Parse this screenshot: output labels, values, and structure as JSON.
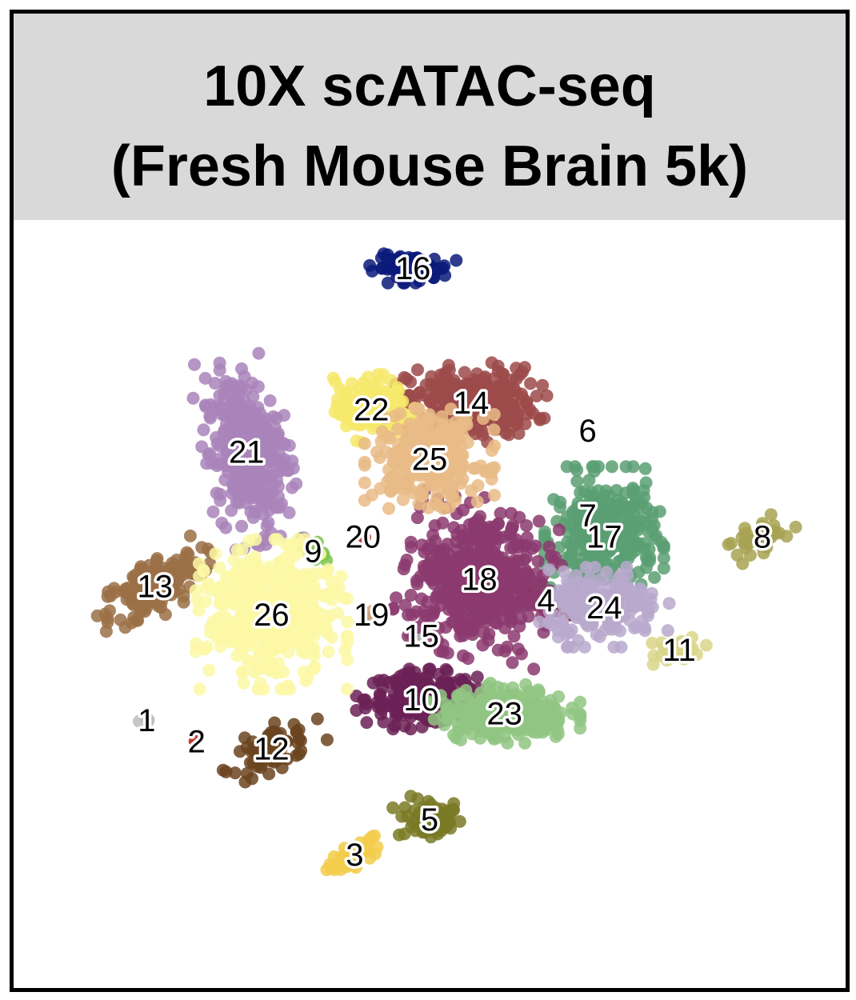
{
  "chart_data": {
    "type": "scatter",
    "title": [
      "10X scATAC-seq",
      "(Fresh Mouse Brain 5k)"
    ],
    "xlabel": "",
    "ylabel": "",
    "grid": false,
    "legend": "none",
    "header_color": "#d9d9d9",
    "clusters": [
      {
        "label": "1",
        "color": "#bdbdbd",
        "x": 0.16,
        "y": 0.36,
        "spread": [
          0.008,
          0.005
        ],
        "n": 6
      },
      {
        "label": "2",
        "color": "#c0392b",
        "x": 0.22,
        "y": 0.33,
        "spread": [
          0.003,
          0.003
        ],
        "n": 2
      },
      {
        "label": "3",
        "color": "#f2cd4b",
        "x": 0.41,
        "y": 0.17,
        "spread": [
          0.035,
          0.012
        ],
        "n": 45,
        "tilt": 28
      },
      {
        "label": "4",
        "color": "#6d1414",
        "x": 0.64,
        "y": 0.53,
        "spread": [
          0.03,
          0.012
        ],
        "n": 30,
        "tilt": -25
      },
      {
        "label": "5",
        "color": "#7a7a26",
        "x": 0.5,
        "y": 0.22,
        "spread": [
          0.035,
          0.025
        ],
        "n": 60
      },
      {
        "label": "6",
        "color": "#444444",
        "x": 0.69,
        "y": 0.77,
        "spread": [
          0,
          0
        ],
        "n": 0
      },
      {
        "label": "7",
        "color": "#5b2c83",
        "x": 0.69,
        "y": 0.65,
        "spread": [
          0.01,
          0.008
        ],
        "n": 10
      },
      {
        "label": "8",
        "color": "#a8a352",
        "x": 0.9,
        "y": 0.62,
        "spread": [
          0.015,
          0.035
        ],
        "n": 45,
        "tilt": -65
      },
      {
        "label": "9",
        "color": "#7cc54f",
        "x": 0.36,
        "y": 0.6,
        "spread": [
          0.02,
          0.01
        ],
        "n": 20,
        "tilt": -30
      },
      {
        "label": "10",
        "color": "#6b2156",
        "x": 0.49,
        "y": 0.39,
        "spread": [
          0.06,
          0.03
        ],
        "n": 220
      },
      {
        "label": "11",
        "color": "#d9d68a",
        "x": 0.8,
        "y": 0.46,
        "spread": [
          0.025,
          0.015
        ],
        "n": 35
      },
      {
        "label": "12",
        "color": "#6b4420",
        "x": 0.31,
        "y": 0.32,
        "spread": [
          0.05,
          0.022
        ],
        "n": 70,
        "tilt": 25
      },
      {
        "label": "13",
        "color": "#9b7046",
        "x": 0.17,
        "y": 0.55,
        "spread": [
          0.06,
          0.03
        ],
        "n": 170,
        "tilt": 30
      },
      {
        "label": "14",
        "color": "#9c4a4a",
        "x": 0.55,
        "y": 0.81,
        "spread": [
          0.07,
          0.04
        ],
        "n": 260
      },
      {
        "label": "15",
        "color": "#b0b0b0",
        "x": 0.49,
        "y": 0.48,
        "spread": [
          0.004,
          0.004
        ],
        "n": 2
      },
      {
        "label": "16",
        "color": "#0b1a7a",
        "x": 0.48,
        "y": 1.0,
        "spread": [
          0.04,
          0.015
        ],
        "n": 90
      },
      {
        "label": "17",
        "color": "#5a9f73",
        "x": 0.71,
        "y": 0.62,
        "spread": [
          0.055,
          0.07
        ],
        "n": 330
      },
      {
        "label": "18",
        "color": "#8b3a6e",
        "x": 0.56,
        "y": 0.56,
        "spread": [
          0.07,
          0.08
        ],
        "n": 520,
        "tilt": -15
      },
      {
        "label": "19",
        "color": "#c9a27a",
        "x": 0.43,
        "y": 0.51,
        "spread": [
          0.004,
          0.01
        ],
        "n": 4
      },
      {
        "label": "20",
        "color": "#c0392b",
        "x": 0.42,
        "y": 0.62,
        "spread": [
          0.003,
          0.003
        ],
        "n": 2
      },
      {
        "label": "21",
        "color": "#a984ba",
        "x": 0.28,
        "y": 0.74,
        "spread": [
          0.04,
          0.095
        ],
        "n": 330,
        "tilt": 10
      },
      {
        "label": "22",
        "color": "#f6e96b",
        "x": 0.43,
        "y": 0.8,
        "spread": [
          0.04,
          0.035
        ],
        "n": 150
      },
      {
        "label": "23",
        "color": "#90c583",
        "x": 0.59,
        "y": 0.37,
        "spread": [
          0.07,
          0.03
        ],
        "n": 270
      },
      {
        "label": "24",
        "color": "#b8a9cc",
        "x": 0.71,
        "y": 0.52,
        "spread": [
          0.06,
          0.04
        ],
        "n": 180
      },
      {
        "label": "25",
        "color": "#e9bb86",
        "x": 0.5,
        "y": 0.73,
        "spread": [
          0.06,
          0.05
        ],
        "n": 300
      },
      {
        "label": "26",
        "color": "#fbf8a6",
        "x": 0.31,
        "y": 0.51,
        "spread": [
          0.07,
          0.075
        ],
        "n": 480
      }
    ]
  }
}
